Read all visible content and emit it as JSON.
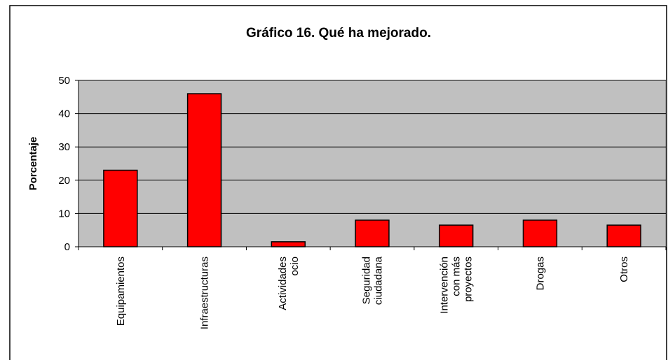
{
  "chart_data": {
    "type": "bar",
    "title": "Gráfico 16. Qué ha mejorado.",
    "y_label": "Porcentaje",
    "categories": [
      "Equipamientos",
      "Infraestructuras",
      "Actividades\nocio",
      "Seguridad\nciudadana",
      "Intervención\ncon más\nproyectos",
      "Drogas",
      "Otros"
    ],
    "values": [
      23,
      46,
      1.5,
      8,
      6.5,
      8,
      6.5
    ],
    "color": "#ff0000",
    "ylim": [
      0,
      50
    ],
    "yticks": [
      0,
      10,
      20,
      30,
      40,
      50
    ],
    "grid": true
  }
}
